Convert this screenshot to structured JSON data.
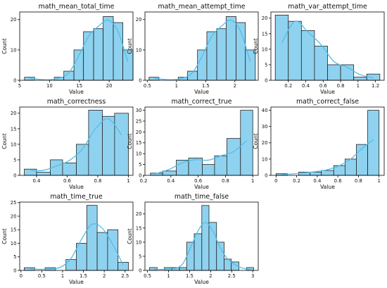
{
  "chart_data": [
    {
      "type": "bar",
      "title": "math_mean_total_time",
      "xlabel": "Value",
      "ylabel": "Count",
      "bins": [
        [
          5.8,
          7.5
        ],
        [
          7.5,
          9.1
        ],
        [
          9.1,
          10.8
        ],
        [
          10.8,
          12.4
        ],
        [
          12.4,
          14.1
        ],
        [
          14.1,
          15.7
        ],
        [
          15.7,
          17.4
        ],
        [
          17.4,
          19.0
        ],
        [
          19.0,
          20.7
        ],
        [
          20.7,
          22.3
        ],
        [
          22.3,
          24.0
        ]
      ],
      "values": [
        1,
        0,
        0,
        1,
        3,
        10,
        16,
        17,
        21,
        19,
        10
      ],
      "kde_y": [
        0.6,
        0.3,
        0.2,
        0.7,
        2.5,
        8.0,
        14.5,
        17.8,
        19.8,
        16.0,
        6.0
      ],
      "xlim": [
        5.0,
        24.0
      ],
      "ylim": [
        0,
        22.5
      ],
      "xticks": [
        5,
        10,
        15,
        20
      ],
      "yticks": [
        0,
        10,
        20
      ]
    },
    {
      "type": "bar",
      "title": "math_mean_attempt_time",
      "xlabel": "Value",
      "ylabel": "Count",
      "bins": [
        [
          0.53,
          0.7
        ],
        [
          0.7,
          0.86
        ],
        [
          0.86,
          1.03
        ],
        [
          1.03,
          1.19
        ],
        [
          1.19,
          1.36
        ],
        [
          1.36,
          1.52
        ],
        [
          1.52,
          1.69
        ],
        [
          1.69,
          1.85
        ],
        [
          1.85,
          2.02
        ],
        [
          2.02,
          2.18
        ],
        [
          2.18,
          2.35
        ]
      ],
      "values": [
        1,
        0,
        0,
        1,
        3,
        10,
        16,
        17,
        21,
        19,
        10
      ],
      "kde_y": [
        0.6,
        0.3,
        0.2,
        0.7,
        2.5,
        8.0,
        14.5,
        17.8,
        19.8,
        16.0,
        6.0
      ],
      "xlim": [
        0.46,
        2.4
      ],
      "ylim": [
        0,
        22.5
      ],
      "xticks": [
        0.5,
        1.0,
        1.5,
        2.0
      ],
      "yticks": [
        0,
        10,
        20
      ]
    },
    {
      "type": "bar",
      "title": "math_var_attempt_time",
      "xlabel": "Value",
      "ylabel": "Count",
      "bins": [
        [
          0.05,
          0.2
        ],
        [
          0.2,
          0.35
        ],
        [
          0.35,
          0.5
        ],
        [
          0.5,
          0.65
        ],
        [
          0.65,
          0.8
        ],
        [
          0.8,
          0.95
        ],
        [
          0.95,
          1.1
        ],
        [
          1.1,
          1.25
        ]
      ],
      "values": [
        21,
        19,
        16,
        11,
        5,
        5,
        1,
        2
      ],
      "kde_y": [
        12.0,
        19.0,
        15.5,
        11.5,
        6.0,
        4.2,
        1.8,
        0.8
      ],
      "xlim": [
        0.0,
        1.3
      ],
      "ylim": [
        0,
        22.0
      ],
      "xticks": [
        0.2,
        0.4,
        0.6,
        0.8,
        1.0,
        1.2
      ],
      "yticks": [
        0,
        5,
        10,
        15,
        20
      ]
    },
    {
      "type": "bar",
      "title": "math_correctness",
      "xlabel": "Value",
      "ylabel": "Count",
      "bins": [
        [
          0.32,
          0.4
        ],
        [
          0.4,
          0.49
        ],
        [
          0.49,
          0.57
        ],
        [
          0.57,
          0.66
        ],
        [
          0.66,
          0.74
        ],
        [
          0.74,
          0.83
        ],
        [
          0.83,
          0.91
        ],
        [
          0.91,
          1.0
        ]
      ],
      "values": [
        2,
        1,
        5,
        4,
        10,
        21,
        19,
        20
      ],
      "kde_y": [
        1.5,
        1.6,
        3.0,
        4.8,
        8.5,
        15.0,
        18.2,
        13.0
      ],
      "xlim": [
        0.29,
        1.03
      ],
      "ylim": [
        0,
        22.0
      ],
      "xticks": [
        0.4,
        0.6,
        0.8,
        1.0
      ],
      "yticks": [
        0,
        5,
        10,
        15,
        20
      ]
    },
    {
      "type": "bar",
      "title": "math_correct_true",
      "xlabel": "Value",
      "ylabel": "Count",
      "bins": [
        [
          0.25,
          0.34
        ],
        [
          0.34,
          0.44
        ],
        [
          0.44,
          0.53
        ],
        [
          0.53,
          0.63
        ],
        [
          0.63,
          0.72
        ],
        [
          0.72,
          0.81
        ],
        [
          0.81,
          0.91
        ],
        [
          0.91,
          1.0
        ]
      ],
      "values": [
        1,
        2,
        7,
        8,
        5,
        9,
        17,
        30
      ],
      "kde_y": [
        0.9,
        2.8,
        5.8,
        7.2,
        7.0,
        9.0,
        11.0,
        16.0
      ],
      "xlim": [
        0.21,
        1.04
      ],
      "ylim": [
        0,
        31.5
      ],
      "xticks": [
        0.2,
        0.4,
        0.6,
        0.8,
        1.0
      ],
      "yticks": [
        0,
        5,
        10,
        15,
        20,
        25,
        30
      ]
    },
    {
      "type": "bar",
      "title": "math_correct_false",
      "xlabel": "Value",
      "ylabel": "Count",
      "bins": [
        [
          0.0,
          0.11
        ],
        [
          0.11,
          0.22
        ],
        [
          0.22,
          0.33
        ],
        [
          0.33,
          0.44
        ],
        [
          0.44,
          0.56
        ],
        [
          0.56,
          0.67
        ],
        [
          0.67,
          0.78
        ],
        [
          0.78,
          0.89
        ],
        [
          0.89,
          1.0
        ]
      ],
      "values": [
        1,
        0,
        2,
        2,
        3,
        6,
        10,
        19,
        40
      ],
      "kde_y": [
        0.4,
        0.9,
        1.5,
        2.3,
        3.5,
        6.0,
        10.0,
        16.5,
        22.0
      ],
      "xlim": [
        -0.05,
        1.05
      ],
      "ylim": [
        0,
        42.0
      ],
      "xticks": [
        0.0,
        0.2,
        0.4,
        0.6,
        0.8,
        1.0
      ],
      "yticks": [
        0,
        10,
        20,
        30,
        40
      ]
    },
    {
      "type": "bar",
      "title": "math_time_true",
      "xlabel": "Value",
      "ylabel": "Count",
      "bins": [
        [
          0.08,
          0.33
        ],
        [
          0.33,
          0.58
        ],
        [
          0.58,
          0.83
        ],
        [
          0.83,
          1.08
        ],
        [
          1.08,
          1.33
        ],
        [
          1.33,
          1.58
        ],
        [
          1.58,
          1.83
        ],
        [
          1.83,
          2.08
        ],
        [
          2.08,
          2.33
        ],
        [
          2.33,
          2.58
        ]
      ],
      "values": [
        1,
        0,
        1,
        0,
        4,
        10,
        24,
        14,
        15,
        3
      ],
      "kde_y": [
        0.6,
        0.4,
        0.5,
        1.2,
        4.5,
        11.5,
        17.0,
        15.5,
        9.5,
        2.0
      ],
      "xlim": [
        -0.03,
        2.69
      ],
      "ylim": [
        0,
        25.2
      ],
      "xticks": [
        0.0,
        0.5,
        1.0,
        1.5,
        2.0,
        2.5
      ],
      "yticks": [
        0,
        5,
        10,
        15,
        20,
        25
      ]
    },
    {
      "type": "bar",
      "title": "math_time_false",
      "xlabel": "Value",
      "ylabel": "Count",
      "bins": [
        [
          0.55,
          0.73
        ],
        [
          0.73,
          0.9
        ],
        [
          0.9,
          1.08
        ],
        [
          1.08,
          1.26
        ],
        [
          1.26,
          1.43
        ],
        [
          1.43,
          1.61
        ],
        [
          1.61,
          1.79
        ],
        [
          1.79,
          1.96
        ],
        [
          1.96,
          2.14
        ],
        [
          2.14,
          2.32
        ],
        [
          2.32,
          2.49
        ],
        [
          2.49,
          2.67
        ],
        [
          2.67,
          2.85
        ],
        [
          2.85,
          3.02
        ]
      ],
      "values": [
        1,
        0,
        1,
        1,
        1,
        10,
        13,
        23,
        17,
        10,
        4,
        3,
        0,
        1
      ],
      "kde_y": [
        0.4,
        0.3,
        0.5,
        0.7,
        2.5,
        8.0,
        14.0,
        17.0,
        14.0,
        8.0,
        4.0,
        2.0,
        0.8,
        0.3
      ],
      "xlim": [
        0.44,
        3.13
      ],
      "ylim": [
        0,
        24.2
      ],
      "xticks": [
        0.5,
        1.0,
        1.5,
        2.0,
        2.5,
        3.0
      ],
      "yticks": [
        0,
        5,
        10,
        15,
        20
      ]
    }
  ]
}
